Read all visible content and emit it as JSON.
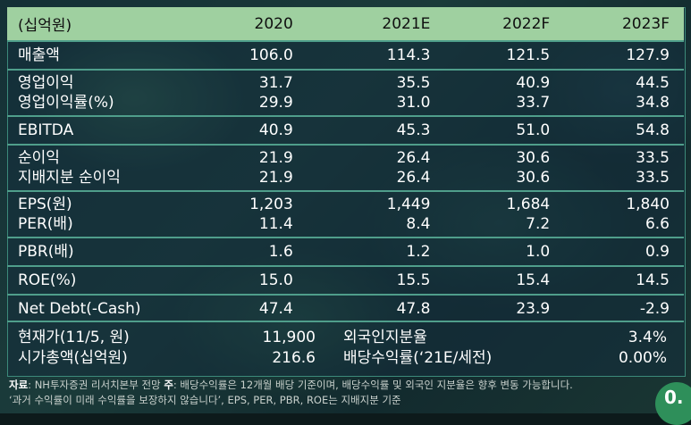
{
  "table": {
    "header": {
      "label": "(십억원)",
      "years": [
        "2020",
        "2021E",
        "2022F",
        "2023F"
      ]
    },
    "groups": [
      {
        "rows": [
          {
            "label": "매출액",
            "values": [
              "106.0",
              "114.3",
              "121.5",
              "127.9"
            ]
          }
        ]
      },
      {
        "rows": [
          {
            "label": "영업이익",
            "values": [
              "31.7",
              "35.5",
              "40.9",
              "44.5"
            ]
          },
          {
            "label": "영업이익률(%)",
            "values": [
              "29.9",
              "31.0",
              "33.7",
              "34.8"
            ]
          }
        ]
      },
      {
        "rows": [
          {
            "label": "EBITDA",
            "values": [
              "40.9",
              "45.3",
              "51.0",
              "54.8"
            ]
          }
        ]
      },
      {
        "rows": [
          {
            "label": "순이익",
            "values": [
              "21.9",
              "26.4",
              "30.6",
              "33.5"
            ]
          },
          {
            "label": "지배지분 순이익",
            "values": [
              "21.9",
              "26.4",
              "30.6",
              "33.5"
            ]
          }
        ]
      },
      {
        "rows": [
          {
            "label": "EPS(원)",
            "values": [
              "1,203",
              "1,449",
              "1,684",
              "1,840"
            ]
          },
          {
            "label": "PER(배)",
            "values": [
              "11.4",
              "8.4",
              "7.2",
              "6.6"
            ]
          }
        ]
      },
      {
        "rows": [
          {
            "label": "PBR(배)",
            "values": [
              "1.6",
              "1.2",
              "1.0",
              "0.9"
            ]
          }
        ]
      },
      {
        "rows": [
          {
            "label": "ROE(%)",
            "values": [
              "15.0",
              "15.5",
              "15.4",
              "14.5"
            ]
          }
        ]
      },
      {
        "rows": [
          {
            "label": "Net Debt(-Cash)",
            "values": [
              "47.4",
              "47.8",
              "23.9",
              "-2.9"
            ]
          }
        ]
      }
    ]
  },
  "bottom": {
    "left": [
      {
        "label": "현재가(11/5, 원)",
        "value": "11,900"
      },
      {
        "label": "시가총액(십억원)",
        "value": "216.6"
      }
    ],
    "right": [
      {
        "label": "외국인지분율",
        "value": "3.4%"
      },
      {
        "label": "배당수익률(‘21E/세전)",
        "value": "0.00%"
      }
    ]
  },
  "note": {
    "source_label": "자료",
    "source_text": ": NH투자증권 리서치본부 전망 ",
    "note_label": "주",
    "note_text": ": 배당수익률은 12개월 배당 기준이며, 배당수익률 및 외국인 지분율은 향후 변동 가능합니다.",
    "line2": "‘과거 수익률이 미래 수익률을 보장하지 않습니다’,  EPS, PER, PBR, ROE는 지배지분 기준"
  },
  "badge": {
    "text": "0."
  },
  "colors": {
    "header_bg": "#9fd0a0",
    "divider": "#4f9e8b",
    "badge": "#2e8f5a"
  }
}
